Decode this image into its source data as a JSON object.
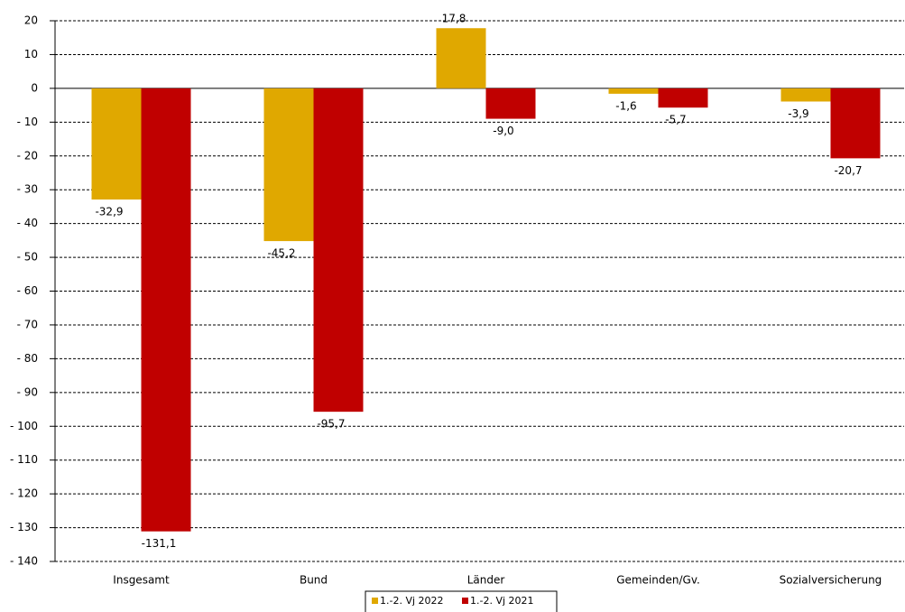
{
  "chart_data": {
    "type": "bar",
    "categories": [
      "Insgesamt",
      "Bund",
      "Länder",
      "Gemeinden/Gv.",
      "Sozialversicherung"
    ],
    "series": [
      {
        "name": "1.-2. Vj 2022",
        "color": "#e0a800",
        "values": [
          -32.9,
          -45.2,
          17.8,
          -1.6,
          -3.9
        ],
        "value_labels": [
          "-32,9",
          "-45,2",
          "17,8",
          "-1,6",
          "-3,9"
        ]
      },
      {
        "name": "1.-2. Vj 2021",
        "color": "#c00000",
        "values": [
          -131.1,
          -95.7,
          -9.0,
          -5.7,
          -20.7
        ],
        "value_labels": [
          "-131,1",
          "-95,7",
          "-9,0",
          "-5,7",
          "-20,7"
        ]
      }
    ],
    "ylim": [
      -140,
      20
    ],
    "yticks": [
      20,
      10,
      0,
      {
        "value": -10,
        "label": "- 10"
      },
      {
        "value": -20,
        "label": "- 20"
      },
      {
        "value": -30,
        "label": "- 30"
      },
      {
        "value": -40,
        "label": "- 40"
      },
      {
        "value": -50,
        "label": "- 50"
      },
      {
        "value": -60,
        "label": "- 60"
      },
      {
        "value": -70,
        "label": "- 70"
      },
      {
        "value": -80,
        "label": "- 80"
      },
      {
        "value": -90,
        "label": "- 90"
      },
      {
        "value": -100,
        "label": "- 100"
      },
      {
        "value": -110,
        "label": "- 110"
      },
      {
        "value": -120,
        "label": "- 120"
      },
      {
        "value": -130,
        "label": "- 130"
      },
      {
        "value": -140,
        "label": "- 140"
      }
    ],
    "grid": true,
    "legend": "bottom"
  }
}
